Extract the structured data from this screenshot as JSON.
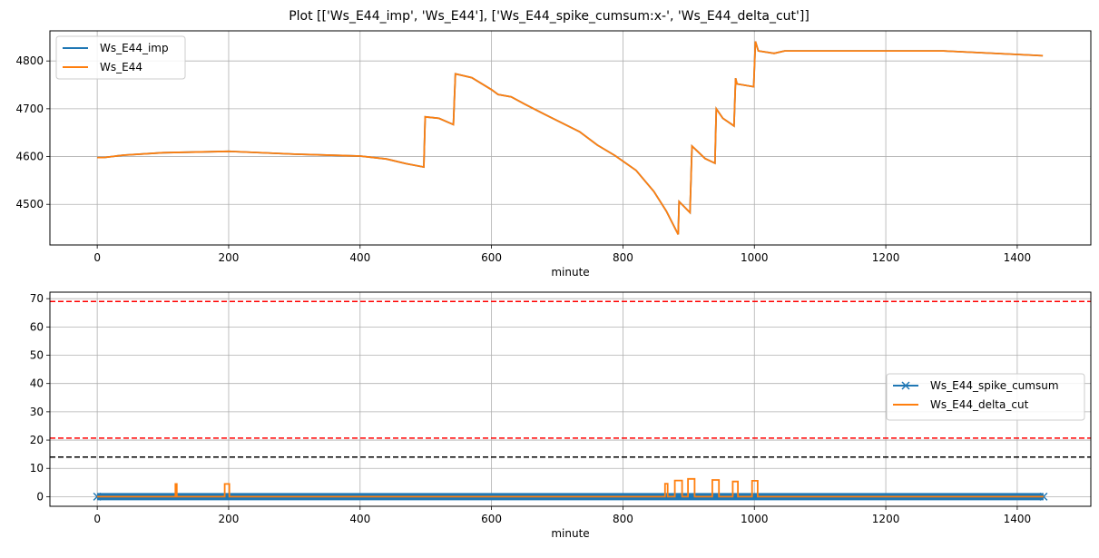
{
  "title": "Plot [['Ws_E44_imp', 'Ws_E44'], ['Ws_E44_spike_cumsum:x-', 'Ws_E44_delta_cut']]",
  "colors": {
    "blue": "#1f77b4",
    "orange": "#ff7f0e",
    "red": "#ff0000",
    "black": "#000000",
    "grid": "#b0b0b0"
  },
  "chart_data": [
    {
      "type": "line",
      "xlabel": "minute",
      "ylabel": "",
      "xlim": [
        -72,
        1512
      ],
      "ylim": [
        4415,
        4863
      ],
      "xticks": [
        0,
        200,
        400,
        600,
        800,
        1000,
        1200,
        1400
      ],
      "yticks": [
        4500,
        4600,
        4700,
        4800
      ],
      "grid": true,
      "legend": "upper left",
      "series": [
        {
          "name": "Ws_E44_imp",
          "color": "#1f77b4",
          "x": [
            0,
            10,
            40,
            100,
            200,
            300,
            400,
            440,
            470,
            497,
            499,
            520,
            542,
            545,
            570,
            600,
            610,
            630,
            650,
            680,
            734,
            761,
            788,
            820,
            847,
            866,
            884,
            885.5,
            902,
            905,
            925,
            940,
            942,
            952,
            969,
            971.5,
            973.6,
            999,
            1001.6,
            1006,
            1030,
            1046,
            1199,
            1288,
            1439
          ],
          "y": [
            4598,
            4598,
            4603,
            4608,
            4611,
            4605,
            4601,
            4595,
            4585,
            4578,
            4683,
            4680,
            4667,
            4773,
            4765,
            4740,
            4730,
            4725,
            4710,
            4689,
            4652,
            4624,
            4602,
            4571,
            4527,
            4486,
            4437,
            4506,
            4483,
            4622,
            4596,
            4586,
            4700,
            4680,
            4664,
            4764,
            4752,
            4746,
            4841,
            4821,
            4816,
            4821,
            4821,
            4821,
            4811
          ]
        },
        {
          "name": "Ws_E44",
          "color": "#ff7f0e",
          "x": [
            0,
            10,
            40,
            100,
            200,
            300,
            400,
            440,
            470,
            497,
            499,
            520,
            542,
            545,
            570,
            600,
            610,
            630,
            650,
            680,
            734,
            761,
            788,
            820,
            847,
            866,
            884,
            885.5,
            902,
            905,
            925,
            940,
            942,
            952,
            969,
            971.5,
            973.6,
            999,
            1001.6,
            1006,
            1030,
            1046,
            1199,
            1288,
            1439
          ],
          "y": [
            4598,
            4598,
            4603,
            4608,
            4611,
            4605,
            4601,
            4595,
            4585,
            4578,
            4683,
            4680,
            4667,
            4773,
            4765,
            4740,
            4730,
            4725,
            4710,
            4689,
            4652,
            4624,
            4602,
            4571,
            4527,
            4486,
            4437,
            4506,
            4483,
            4622,
            4596,
            4586,
            4700,
            4680,
            4664,
            4764,
            4752,
            4746,
            4841,
            4821,
            4816,
            4821,
            4821,
            4821,
            4811
          ]
        }
      ]
    },
    {
      "type": "line",
      "xlabel": "minute",
      "ylabel": "",
      "xlim": [
        -72,
        1512
      ],
      "ylim": [
        -3.4,
        72.3
      ],
      "xticks": [
        0,
        200,
        400,
        600,
        800,
        1000,
        1200,
        1400
      ],
      "yticks": [
        0,
        10,
        20,
        30,
        40,
        50,
        60,
        70
      ],
      "grid": true,
      "legend": "center right",
      "series": [
        {
          "name": "Ws_E44_spike_cumsum",
          "color": "#1f77b4",
          "marker": "x",
          "x": [
            0,
            1440
          ],
          "y": [
            0,
            0
          ]
        },
        {
          "name": "Ws_E44_delta_cut",
          "color": "#ff7f0e",
          "x": [
            0,
            119,
            119,
            121,
            121,
            194,
            194,
            201,
            201,
            864,
            864,
            868,
            868,
            879,
            879,
            890,
            890,
            899,
            899,
            909,
            909,
            936,
            936,
            946,
            946,
            967,
            967,
            975,
            975,
            996.5,
            996.5,
            1005,
            1005,
            1440
          ],
          "y": [
            0,
            0,
            4.5,
            4.5,
            0,
            0,
            4.5,
            4.5,
            0,
            0,
            4.6,
            4.6,
            0,
            0,
            5.7,
            5.7,
            0,
            0,
            6.3,
            6.3,
            0,
            0,
            5.9,
            5.9,
            0,
            0,
            5.35,
            5.35,
            0,
            0,
            5.6,
            5.6,
            0,
            0
          ]
        }
      ],
      "hlines": [
        {
          "y": 69,
          "color": "#ff0000",
          "style": "dashed"
        },
        {
          "y": 20.7,
          "color": "#ff0000",
          "style": "dashed"
        },
        {
          "y": 14,
          "color": "#000000",
          "style": "dashed"
        }
      ]
    }
  ]
}
